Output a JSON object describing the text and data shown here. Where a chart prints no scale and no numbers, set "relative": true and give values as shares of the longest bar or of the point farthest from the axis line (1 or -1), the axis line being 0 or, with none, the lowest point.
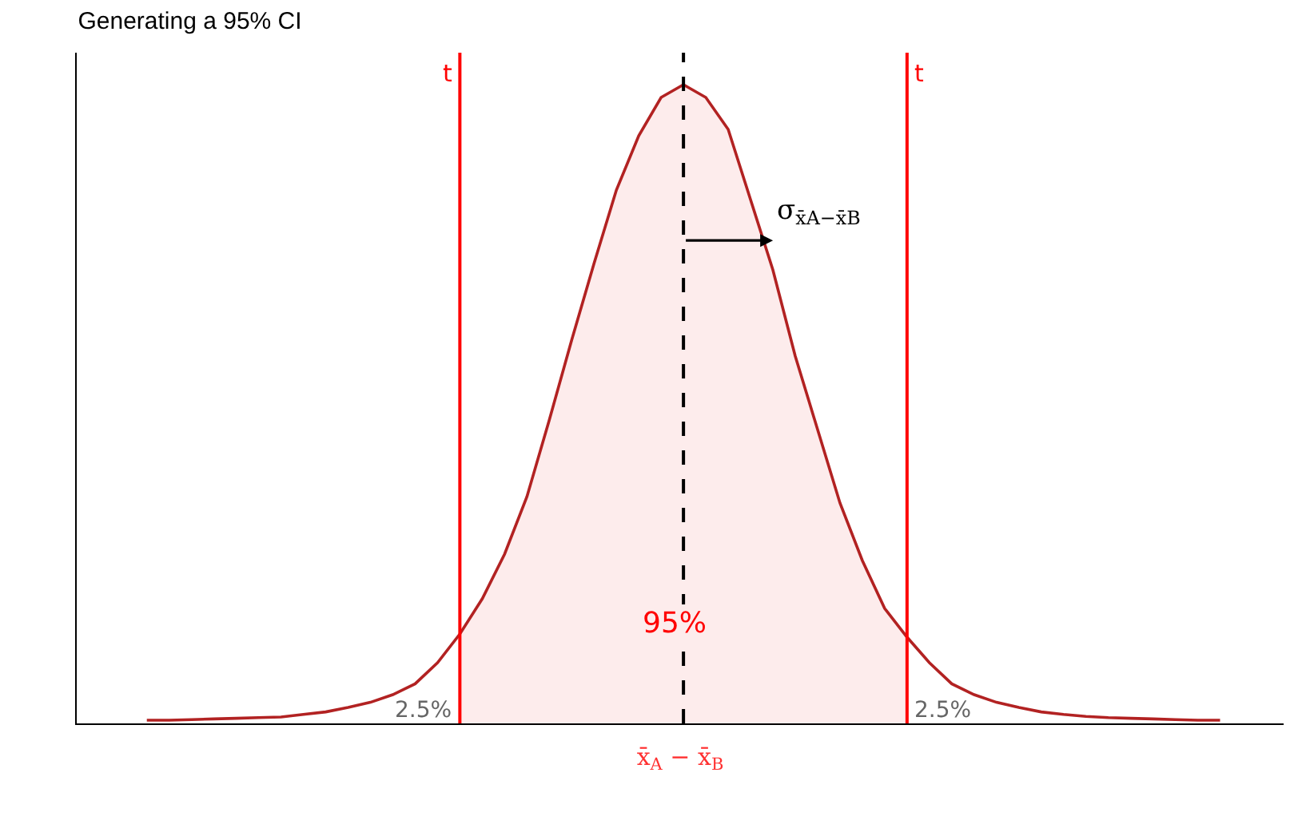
{
  "chart_data": {
    "type": "line",
    "title": "Generating a 95% CI",
    "xlabel": "x̄$_{A}$ − x̄$_{B}$",
    "relative": true,
    "categories": [
      null,
      null,
      null,
      null,
      null,
      null,
      null,
      null,
      null,
      null,
      null,
      null,
      null,
      null,
      null,
      null,
      null,
      null,
      null,
      null,
      null,
      null,
      null,
      null,
      null,
      null,
      null,
      null,
      null,
      null,
      null,
      null,
      null,
      null,
      null,
      null,
      null,
      null,
      null,
      null,
      null,
      null,
      null,
      null,
      null,
      null,
      null,
      null,
      null
    ],
    "tick_labels": false,
    "marker": "none",
    "series": [
      {
        "type": "area",
        "color": "#fdecec",
        "values": [
          null,
          null,
          null,
          null,
          null,
          null,
          null,
          null,
          null,
          null,
          null,
          null,
          null,
          null,
          0.14,
          0.195,
          0.265,
          0.355,
          0.475,
          0.6,
          0.72,
          0.835,
          0.92,
          0.98,
          1.0,
          0.98,
          0.93,
          0.82,
          0.71,
          0.575,
          0.46,
          0.345,
          0.255,
          0.18,
          0.135,
          null,
          null,
          null,
          null,
          null,
          null,
          null,
          null,
          null,
          null,
          null,
          null,
          null,
          null
        ]
      },
      {
        "color": "#b22222",
        "line_style": "solid",
        "values": [
          0.005,
          0.005,
          0.006,
          0.007,
          0.008,
          0.009,
          0.01,
          0.014,
          0.018,
          0.025,
          0.033,
          0.045,
          0.062,
          0.095,
          0.14,
          0.195,
          0.265,
          0.355,
          0.475,
          0.6,
          0.72,
          0.835,
          0.92,
          0.98,
          1.0,
          0.98,
          0.93,
          0.82,
          0.71,
          0.575,
          0.46,
          0.345,
          0.255,
          0.18,
          0.135,
          0.095,
          0.062,
          0.045,
          0.033,
          0.025,
          0.018,
          0.014,
          0.011,
          0.009,
          0.008,
          0.007,
          0.006,
          0.005,
          0.005
        ]
      }
    ],
    "annotations": [
      "t",
      "t",
      "σ$_{x̄A−x̄B}$",
      "95%",
      "2.5%",
      "2.5%"
    ]
  }
}
